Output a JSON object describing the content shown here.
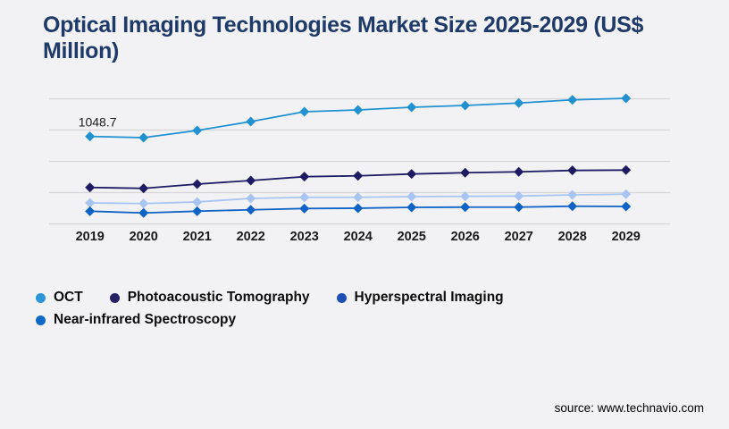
{
  "title": "Optical Imaging Technologies Market Size 2025-2029 (US$ Million)",
  "source_text": "source: www.technavio.com",
  "colors": {
    "background": "#f2f2f4",
    "title": "#1e3a68",
    "gridline": "#d7d7da",
    "axis_label": "#1a1a1a",
    "source": "#000000"
  },
  "chart_data": {
    "type": "line",
    "title": "Optical Imaging Technologies Market Size 2025-2029 (US$ Million)",
    "xlabel": "",
    "ylabel": "",
    "x": [
      "2019",
      "2020",
      "2021",
      "2022",
      "2023",
      "2024",
      "2025",
      "2026",
      "2027",
      "2028",
      "2029"
    ],
    "series": [
      {
        "name": "OCT",
        "line_color": "#2191d0",
        "legend_color": "#2d96d8",
        "values": [
          1048.7,
          1034,
          1120,
          1227,
          1345,
          1366,
          1398,
          1420,
          1449,
          1487,
          1505
        ]
      },
      {
        "name": "Photoacoustic Tomography",
        "line_color": "#1e1a63",
        "legend_color": "#262066",
        "values": [
          437,
          426,
          477,
          520,
          566,
          576,
          598,
          613,
          624,
          641,
          645
        ]
      },
      {
        "name": "Hyperspectral Imaging",
        "line_color": "#a8c4f2",
        "legend_color": "#1d50b4",
        "values": [
          252,
          244,
          263,
          305,
          319,
          319,
          327,
          330,
          334,
          348,
          356
        ]
      },
      {
        "name": "Near-infrared Spectroscopy",
        "line_color": "#1063c6",
        "legend_color": "#0d68c8",
        "values": [
          152,
          131,
          152,
          169,
          184,
          188,
          198,
          201,
          201,
          212,
          209
        ]
      }
    ],
    "annotations": [
      {
        "series_index": 0,
        "point_index": 0,
        "text": "1048.7"
      }
    ],
    "ylim": [
      0,
      1500
    ],
    "gridline_values": [
      0,
      375,
      750,
      1125,
      1500
    ],
    "grid": true,
    "marker": "diamond",
    "legend_position": "bottom-left",
    "y_axis_labels_visible": false
  }
}
